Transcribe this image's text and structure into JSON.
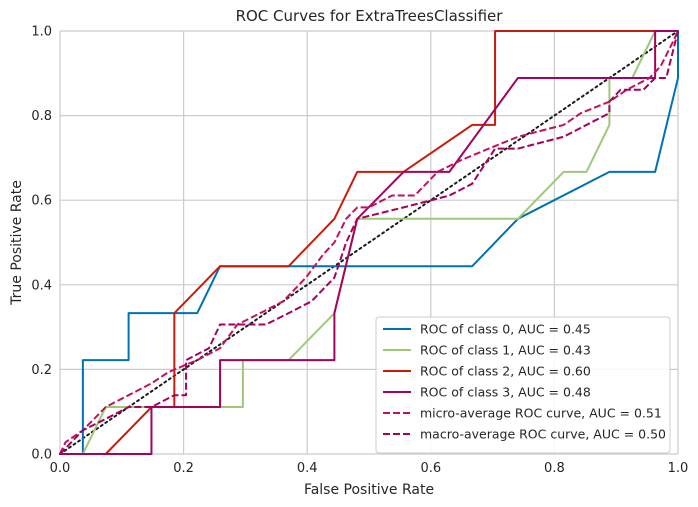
{
  "chart_data": {
    "type": "line",
    "title": "ROC Curves for ExtraTreesClassifier",
    "xlabel": "False Positive Rate",
    "ylabel": "True Positive Rate",
    "xlim": [
      0.0,
      1.0
    ],
    "ylim": [
      0.0,
      1.0
    ],
    "xticks": [
      "0.0",
      "0.2",
      "0.4",
      "0.6",
      "0.8",
      "1.0"
    ],
    "yticks": [
      "0.0",
      "0.2",
      "0.4",
      "0.6",
      "0.8",
      "1.0"
    ],
    "grid": true,
    "legend_position": "lower-right",
    "series": [
      {
        "name": "ROC of class 0, AUC = 0.45",
        "color": "#0072b2",
        "style": "solid",
        "points": [
          [
            0,
            0
          ],
          [
            0.037,
            0
          ],
          [
            0.037,
            0.222
          ],
          [
            0.111,
            0.222
          ],
          [
            0.111,
            0.333
          ],
          [
            0.222,
            0.333
          ],
          [
            0.259,
            0.444
          ],
          [
            0.667,
            0.444
          ],
          [
            0.741,
            0.556
          ],
          [
            0.889,
            0.667
          ],
          [
            0.963,
            0.667
          ],
          [
            1.0,
            0.889
          ],
          [
            1.0,
            1.0
          ]
        ]
      },
      {
        "name": "ROC of class 1, AUC = 0.43",
        "color": "#9ec87a",
        "style": "solid",
        "points": [
          [
            0,
            0
          ],
          [
            0.037,
            0
          ],
          [
            0.074,
            0.111
          ],
          [
            0.296,
            0.111
          ],
          [
            0.296,
            0.222
          ],
          [
            0.37,
            0.222
          ],
          [
            0.444,
            0.333
          ],
          [
            0.481,
            0.556
          ],
          [
            0.741,
            0.556
          ],
          [
            0.815,
            0.667
          ],
          [
            0.852,
            0.667
          ],
          [
            0.889,
            0.778
          ],
          [
            0.889,
            0.889
          ],
          [
            0.926,
            0.889
          ],
          [
            0.963,
            1.0
          ],
          [
            1.0,
            1.0
          ]
        ]
      },
      {
        "name": "ROC of class 2, AUC = 0.60",
        "color": "#c81c0c",
        "style": "solid",
        "points": [
          [
            0,
            0
          ],
          [
            0.074,
            0
          ],
          [
            0.148,
            0.111
          ],
          [
            0.185,
            0.111
          ],
          [
            0.185,
            0.333
          ],
          [
            0.259,
            0.444
          ],
          [
            0.37,
            0.444
          ],
          [
            0.444,
            0.556
          ],
          [
            0.481,
            0.667
          ],
          [
            0.556,
            0.667
          ],
          [
            0.667,
            0.778
          ],
          [
            0.704,
            0.778
          ],
          [
            0.704,
            1.0
          ],
          [
            1.0,
            1.0
          ]
        ]
      },
      {
        "name": "ROC of class 3, AUC = 0.48",
        "color": "#a3025e",
        "style": "solid",
        "points": [
          [
            0,
            0
          ],
          [
            0.148,
            0
          ],
          [
            0.148,
            0.111
          ],
          [
            0.259,
            0.111
          ],
          [
            0.259,
            0.222
          ],
          [
            0.444,
            0.222
          ],
          [
            0.444,
            0.333
          ],
          [
            0.481,
            0.556
          ],
          [
            0.556,
            0.667
          ],
          [
            0.63,
            0.667
          ],
          [
            0.741,
            0.889
          ],
          [
            0.963,
            0.889
          ],
          [
            0.963,
            1.0
          ],
          [
            1.0,
            1.0
          ]
        ]
      },
      {
        "name": "micro-average ROC curve, AUC = 0.51",
        "color": "#c0135e",
        "style": "dashed",
        "points": [
          [
            0,
            0
          ],
          [
            0.009,
            0.028
          ],
          [
            0.037,
            0.056
          ],
          [
            0.074,
            0.111
          ],
          [
            0.111,
            0.139
          ],
          [
            0.148,
            0.167
          ],
          [
            0.176,
            0.194
          ],
          [
            0.222,
            0.222
          ],
          [
            0.259,
            0.25
          ],
          [
            0.287,
            0.306
          ],
          [
            0.324,
            0.333
          ],
          [
            0.361,
            0.361
          ],
          [
            0.398,
            0.417
          ],
          [
            0.426,
            0.472
          ],
          [
            0.444,
            0.5
          ],
          [
            0.463,
            0.556
          ],
          [
            0.481,
            0.583
          ],
          [
            0.5,
            0.583
          ],
          [
            0.537,
            0.611
          ],
          [
            0.574,
            0.611
          ],
          [
            0.611,
            0.667
          ],
          [
            0.648,
            0.694
          ],
          [
            0.694,
            0.722
          ],
          [
            0.741,
            0.75
          ],
          [
            0.815,
            0.778
          ],
          [
            0.843,
            0.806
          ],
          [
            0.889,
            0.833
          ],
          [
            0.917,
            0.861
          ],
          [
            0.954,
            0.889
          ],
          [
            0.972,
            0.917
          ],
          [
            0.991,
            0.972
          ],
          [
            1.0,
            1.0
          ]
        ]
      },
      {
        "name": "macro-average ROC curve, AUC = 0.50",
        "color": "#a3025e",
        "style": "dashed",
        "points": [
          [
            0,
            0
          ],
          [
            0.037,
            0.056
          ],
          [
            0.074,
            0.083
          ],
          [
            0.111,
            0.111
          ],
          [
            0.148,
            0.111
          ],
          [
            0.185,
            0.139
          ],
          [
            0.204,
            0.139
          ],
          [
            0.204,
            0.222
          ],
          [
            0.241,
            0.25
          ],
          [
            0.259,
            0.306
          ],
          [
            0.333,
            0.306
          ],
          [
            0.37,
            0.333
          ],
          [
            0.407,
            0.361
          ],
          [
            0.444,
            0.417
          ],
          [
            0.463,
            0.5
          ],
          [
            0.481,
            0.556
          ],
          [
            0.556,
            0.583
          ],
          [
            0.63,
            0.611
          ],
          [
            0.667,
            0.639
          ],
          [
            0.704,
            0.722
          ],
          [
            0.741,
            0.722
          ],
          [
            0.815,
            0.75
          ],
          [
            0.889,
            0.806
          ],
          [
            0.889,
            0.833
          ],
          [
            0.907,
            0.861
          ],
          [
            0.944,
            0.861
          ],
          [
            0.963,
            0.889
          ],
          [
            0.981,
            0.889
          ],
          [
            1.0,
            1.0
          ]
        ]
      },
      {
        "name": "",
        "color": "#1a1a1a",
        "style": "dotted",
        "points": [
          [
            0,
            0
          ],
          [
            1,
            1
          ]
        ]
      }
    ]
  }
}
